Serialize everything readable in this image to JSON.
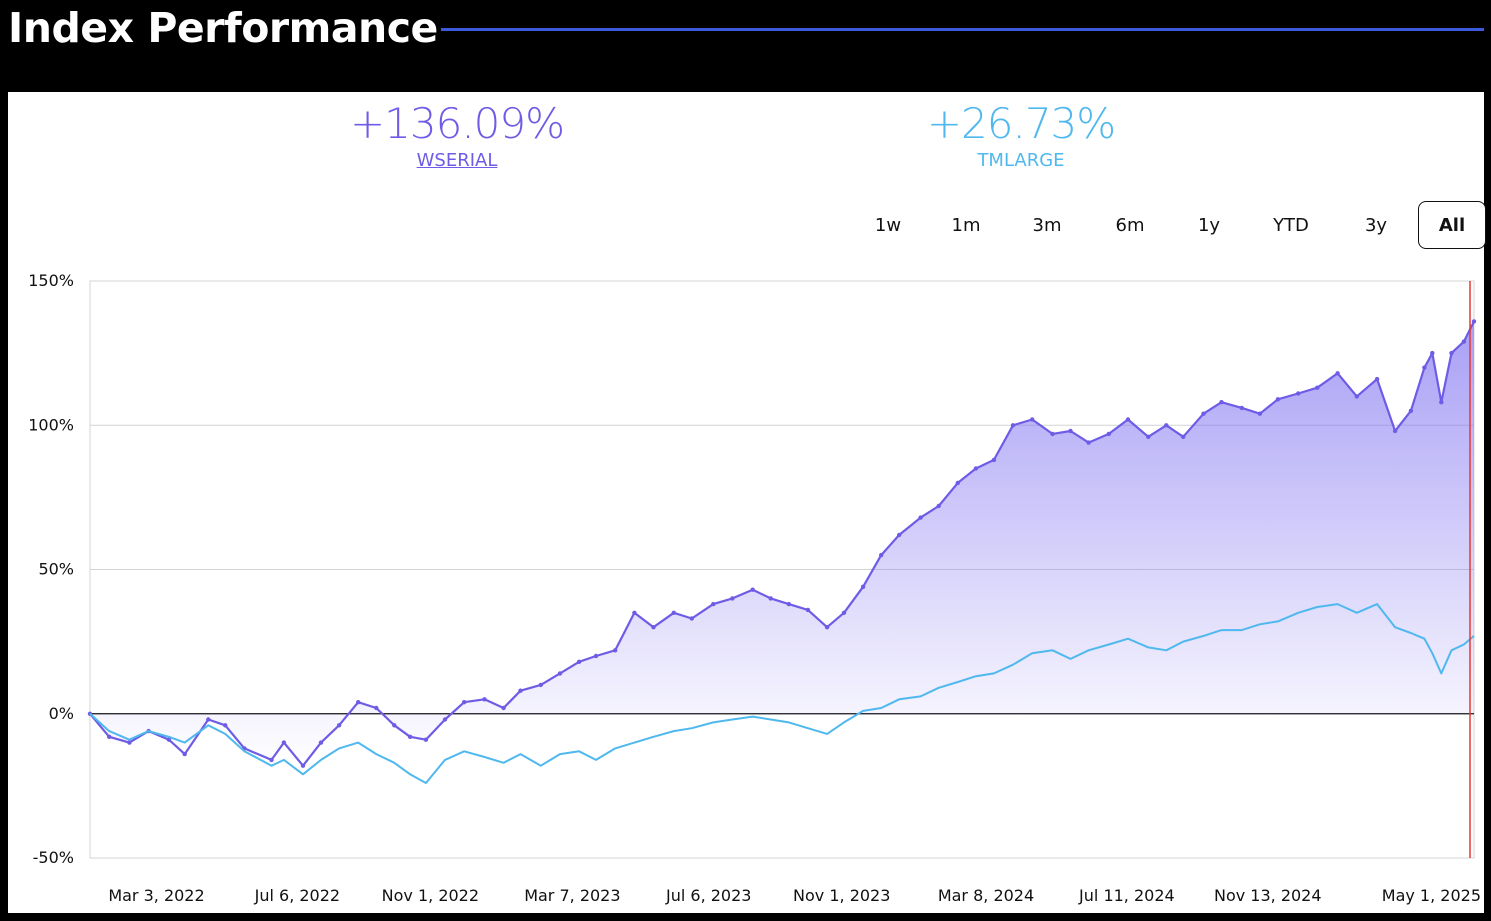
{
  "header": {
    "title": "Index Performance"
  },
  "summary": [
    {
      "value": "+136.09%",
      "name": "WSERIAL"
    },
    {
      "value": "+26.73%",
      "name": "TMLARGE"
    }
  ],
  "ranges": {
    "options": [
      "1w",
      "1m",
      "3m",
      "6m",
      "1y",
      "YTD",
      "3y",
      "All"
    ],
    "selected": "All"
  },
  "colors": {
    "wserial": "#6e5ce6",
    "tmlarge": "#4fb8ee",
    "accent_rule": "#3b5bdb",
    "cursor": "#e53935"
  },
  "chart_data": {
    "type": "line",
    "xlabel": "",
    "ylabel": "",
    "ylim": [
      -50,
      150
    ],
    "yticks": [
      "150%",
      "100%",
      "50%",
      "0%",
      "-50%"
    ],
    "xticks": [
      "Mar 3, 2022",
      "Jul 6, 2022",
      "Nov 1, 2022",
      "Mar 7, 2023",
      "Jul 6, 2023",
      "Nov 1, 2023",
      "Mar 8, 2024",
      "Jul 11, 2024",
      "Nov 13, 2024",
      "May 1, 2025"
    ],
    "xtick_dates": [
      "2022-03-03",
      "2022-07-06",
      "2022-11-01",
      "2023-03-07",
      "2023-07-06",
      "2023-11-01",
      "2024-03-08",
      "2024-07-11",
      "2024-11-13",
      "2025-05-01"
    ],
    "grid": true,
    "series": [
      {
        "name": "WSERIAL",
        "area_fill": true,
        "x": [
          "2022-01-03",
          "2022-01-20",
          "2022-02-07",
          "2022-02-24",
          "2022-03-14",
          "2022-03-28",
          "2022-04-18",
          "2022-05-03",
          "2022-05-20",
          "2022-06-13",
          "2022-06-24",
          "2022-07-11",
          "2022-07-27",
          "2022-08-12",
          "2022-08-29",
          "2022-09-14",
          "2022-09-30",
          "2022-10-14",
          "2022-10-28",
          "2022-11-14",
          "2022-12-01",
          "2022-12-19",
          "2023-01-05",
          "2023-01-20",
          "2023-02-07",
          "2023-02-24",
          "2023-03-13",
          "2023-03-28",
          "2023-04-14",
          "2023-05-01",
          "2023-05-18",
          "2023-06-05",
          "2023-06-21",
          "2023-07-10",
          "2023-07-27",
          "2023-08-14",
          "2023-08-30",
          "2023-09-15",
          "2023-10-02",
          "2023-10-19",
          "2023-11-03",
          "2023-11-20",
          "2023-12-06",
          "2023-12-22",
          "2024-01-10",
          "2024-01-26",
          "2024-02-12",
          "2024-02-28",
          "2024-03-15",
          "2024-04-01",
          "2024-04-18",
          "2024-05-06",
          "2024-05-22",
          "2024-06-07",
          "2024-06-25",
          "2024-07-12",
          "2024-07-30",
          "2024-08-15",
          "2024-08-30",
          "2024-09-17",
          "2024-10-03",
          "2024-10-21",
          "2024-11-06",
          "2024-11-22",
          "2024-12-10",
          "2024-12-27",
          "2025-01-14",
          "2025-01-31",
          "2025-02-18",
          "2025-03-06",
          "2025-03-20",
          "2025-04-01",
          "2025-04-08",
          "2025-04-16",
          "2025-04-25",
          "2025-05-06",
          "2025-05-15"
        ],
        "values": [
          0,
          -8,
          -10,
          -6,
          -9,
          -14,
          -2,
          -4,
          -12,
          -16,
          -10,
          -18,
          -10,
          -4,
          4,
          2,
          -4,
          -8,
          -9,
          -2,
          4,
          5,
          2,
          8,
          10,
          14,
          18,
          20,
          22,
          35,
          30,
          35,
          33,
          38,
          40,
          43,
          40,
          38,
          36,
          30,
          35,
          44,
          55,
          62,
          68,
          72,
          80,
          85,
          88,
          100,
          102,
          97,
          98,
          94,
          97,
          102,
          96,
          100,
          96,
          104,
          108,
          106,
          104,
          109,
          111,
          113,
          118,
          110,
          116,
          98,
          105,
          120,
          125,
          108,
          125,
          129,
          136
        ]
      },
      {
        "name": "TMLARGE",
        "area_fill": false,
        "x": [
          "2022-01-03",
          "2022-01-20",
          "2022-02-07",
          "2022-02-24",
          "2022-03-14",
          "2022-03-28",
          "2022-04-18",
          "2022-05-03",
          "2022-05-20",
          "2022-06-13",
          "2022-06-24",
          "2022-07-11",
          "2022-07-27",
          "2022-08-12",
          "2022-08-29",
          "2022-09-14",
          "2022-09-30",
          "2022-10-14",
          "2022-10-28",
          "2022-11-14",
          "2022-12-01",
          "2022-12-19",
          "2023-01-05",
          "2023-01-20",
          "2023-02-07",
          "2023-02-24",
          "2023-03-13",
          "2023-03-28",
          "2023-04-14",
          "2023-05-01",
          "2023-05-18",
          "2023-06-05",
          "2023-06-21",
          "2023-07-10",
          "2023-07-27",
          "2023-08-14",
          "2023-08-30",
          "2023-09-15",
          "2023-10-02",
          "2023-10-19",
          "2023-11-03",
          "2023-11-20",
          "2023-12-06",
          "2023-12-22",
          "2024-01-10",
          "2024-01-26",
          "2024-02-12",
          "2024-02-28",
          "2024-03-15",
          "2024-04-01",
          "2024-04-18",
          "2024-05-06",
          "2024-05-22",
          "2024-06-07",
          "2024-06-25",
          "2024-07-12",
          "2024-07-30",
          "2024-08-15",
          "2024-08-30",
          "2024-09-17",
          "2024-10-03",
          "2024-10-21",
          "2024-11-06",
          "2024-11-22",
          "2024-12-10",
          "2024-12-27",
          "2025-01-14",
          "2025-01-31",
          "2025-02-18",
          "2025-03-06",
          "2025-03-20",
          "2025-04-01",
          "2025-04-08",
          "2025-04-16",
          "2025-04-25",
          "2025-05-06",
          "2025-05-15"
        ],
        "values": [
          0,
          -6,
          -9,
          -6,
          -8,
          -10,
          -4,
          -7,
          -13,
          -18,
          -16,
          -21,
          -16,
          -12,
          -10,
          -14,
          -17,
          -21,
          -24,
          -16,
          -13,
          -15,
          -17,
          -14,
          -18,
          -14,
          -13,
          -16,
          -12,
          -10,
          -8,
          -6,
          -5,
          -3,
          -2,
          -1,
          -2,
          -3,
          -5,
          -7,
          -3,
          1,
          2,
          5,
          6,
          9,
          11,
          13,
          14,
          17,
          21,
          22,
          19,
          22,
          24,
          26,
          23,
          22,
          25,
          27,
          29,
          29,
          31,
          32,
          35,
          37,
          38,
          35,
          38,
          30,
          28,
          26,
          21,
          14,
          22,
          24,
          27
        ]
      }
    ]
  }
}
